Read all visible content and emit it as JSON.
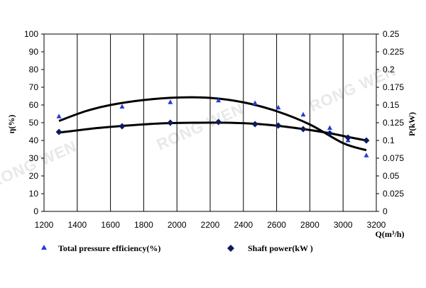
{
  "chart_data": {
    "type": "scatter",
    "x_axis": {
      "label": "Q(m³/h)",
      "min": 1200,
      "max": 3200,
      "step": 200,
      "ticks": [
        "1200",
        "1400",
        "1600",
        "1800",
        "2000",
        "2200",
        "2400",
        "2600",
        "2800",
        "3000",
        "3200"
      ]
    },
    "y_left": {
      "label": "η(%)",
      "min": 0,
      "max": 100,
      "step": 10,
      "ticks": [
        "0",
        "10",
        "20",
        "30",
        "40",
        "50",
        "60",
        "70",
        "80",
        "90",
        "100"
      ]
    },
    "y_right": {
      "label": "P(kW)",
      "min": 0,
      "max": 0.25,
      "step": 0.025,
      "ticks": [
        "0",
        "0.025",
        "0.05",
        "0.075",
        "0.1",
        "0.125",
        "0.15",
        "0.175",
        "0.2",
        "0.225",
        "0.25"
      ]
    },
    "grid": "vertical",
    "series": [
      {
        "name": "Total pressure efficiency(%)",
        "axis": "left",
        "marker": "triangle",
        "color": "#1f3fd8",
        "points": [
          [
            1290,
            53.5
          ],
          [
            1670,
            59
          ],
          [
            1960,
            61.5
          ],
          [
            2250,
            62.5
          ],
          [
            2470,
            61
          ],
          [
            2610,
            58.5
          ],
          [
            2760,
            54.5
          ],
          [
            2920,
            47
          ],
          [
            3030,
            40
          ],
          [
            3140,
            31.5
          ]
        ],
        "trend": [
          [
            1290,
            51
          ],
          [
            1450,
            56.5
          ],
          [
            1600,
            60
          ],
          [
            1800,
            62.8
          ],
          [
            2000,
            64.2
          ],
          [
            2200,
            64
          ],
          [
            2400,
            61.5
          ],
          [
            2600,
            56.5
          ],
          [
            2800,
            49
          ],
          [
            3000,
            38.5
          ],
          [
            3140,
            34.5
          ]
        ]
      },
      {
        "name": "Shaft power(kW )",
        "axis": "right",
        "marker": "diamond",
        "color": "#0d1a5c",
        "points": [
          [
            1290,
            0.112
          ],
          [
            1670,
            0.12
          ],
          [
            1960,
            0.125
          ],
          [
            2250,
            0.126
          ],
          [
            2470,
            0.123
          ],
          [
            2610,
            0.121
          ],
          [
            2760,
            0.116
          ],
          [
            2920,
            0.11
          ],
          [
            3030,
            0.104
          ],
          [
            3140,
            0.1
          ]
        ],
        "trend": [
          [
            1290,
            0.111
          ],
          [
            1500,
            0.117
          ],
          [
            1700,
            0.121
          ],
          [
            1900,
            0.124
          ],
          [
            2100,
            0.125
          ],
          [
            2300,
            0.125
          ],
          [
            2500,
            0.123
          ],
          [
            2700,
            0.118
          ],
          [
            2900,
            0.111
          ],
          [
            3050,
            0.104
          ],
          [
            3140,
            0.1
          ]
        ]
      }
    ],
    "legend": {
      "position": "bottom",
      "items": [
        "Total pressure efficiency(%)",
        "Shaft power(kW )"
      ]
    },
    "watermark": "RONG WEN"
  }
}
